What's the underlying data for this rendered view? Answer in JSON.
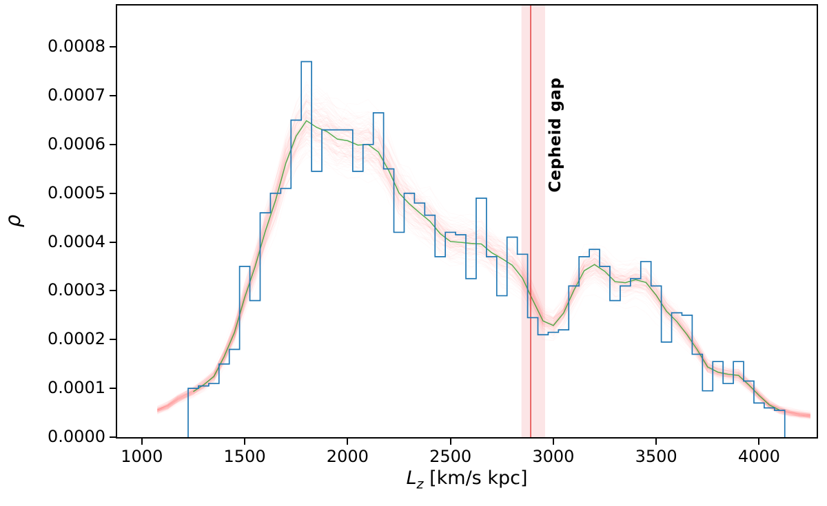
{
  "figure": {
    "ylabel": "ρ",
    "xlabel_main": "L",
    "xlabel_sub": "z",
    "xlabel_rest": " [km/s kpc]"
  },
  "chart_data": {
    "type": "bar",
    "subtype": "step-histogram-with-sample-cloud",
    "title": "",
    "xlabel": "Lz [km/s kpc]",
    "ylabel": "ρ",
    "xlim": [
      880,
      4280
    ],
    "ylim": [
      0,
      0.000885
    ],
    "grid": false,
    "legend": "none",
    "xticks": [
      1000,
      1500,
      2000,
      2500,
      3000,
      3500,
      4000
    ],
    "xtick_labels": [
      "1000",
      "1500",
      "2000",
      "2500",
      "3000",
      "3500",
      "4000"
    ],
    "ytick_values": [
      0,
      0.0001,
      0.0002,
      0.0003,
      0.0004,
      0.0005,
      0.0006,
      0.0007,
      0.0008
    ],
    "ytick_labels": [
      "0.0000",
      "0.0001",
      "0.0002",
      "0.0003",
      "0.0004",
      "0.0005",
      "0.0006",
      "0.0007",
      "0.0008"
    ],
    "bin_edges": [
      1225,
      1275,
      1325,
      1375,
      1425,
      1475,
      1525,
      1575,
      1625,
      1675,
      1725,
      1775,
      1825,
      1875,
      1925,
      1975,
      2025,
      2075,
      2125,
      2175,
      2225,
      2275,
      2325,
      2375,
      2425,
      2475,
      2525,
      2575,
      2625,
      2675,
      2725,
      2775,
      2825,
      2875,
      2925,
      2975,
      3025,
      3075,
      3125,
      3175,
      3225,
      3275,
      3325,
      3375,
      3425,
      3475,
      3525,
      3575,
      3625,
      3675,
      3725,
      3775,
      3825,
      3875,
      3925,
      3975,
      4025,
      4075,
      4125
    ],
    "bin_values": [
      0.0001,
      0.000105,
      0.00011,
      0.00015,
      0.00018,
      0.00035,
      0.00028,
      0.00046,
      0.0005,
      0.00051,
      0.00065,
      0.00077,
      0.000545,
      0.00063,
      0.00063,
      0.00063,
      0.000545,
      0.0006,
      0.000665,
      0.00055,
      0.00042,
      0.0005,
      0.00048,
      0.000455,
      0.00037,
      0.00042,
      0.000415,
      0.000325,
      0.00049,
      0.00037,
      0.00029,
      0.00041,
      0.000375,
      0.000245,
      0.00021,
      0.000215,
      0.00022,
      0.00031,
      0.00037,
      0.000385,
      0.00035,
      0.00028,
      0.00031,
      0.000325,
      0.00036,
      0.00031,
      0.000195,
      0.000255,
      0.00025,
      0.00017,
      9.5e-05,
      0.000155,
      0.00011,
      0.000155,
      0.000115,
      7e-05,
      6e-05,
      5.5e-05
    ],
    "gap_line_x": 2890,
    "gap_band": [
      2845,
      2960
    ],
    "annotation": {
      "text": "Cepheid gap",
      "x": 3010,
      "y": 0.00062
    },
    "series_colors": {
      "histogram": "#1f77b4",
      "samples": "#fa6e55",
      "median": "#2ca02c",
      "gap_line": "#e03131",
      "gap_band": "#f9cfd2"
    },
    "samples": {
      "count": 160,
      "alpha": 0.03,
      "rel_sigma": 0.035,
      "abs_sigma": 2.5e-06,
      "extend_left": {
        "centers": [
          1075,
          1125,
          1175
        ],
        "values": [
          4e-05,
          6e-05,
          8e-05
        ]
      },
      "extend_right": {
        "centers": [
          4150,
          4200,
          4250
        ],
        "values": [
          5e-05,
          4.5e-05,
          4e-05
        ]
      }
    }
  }
}
